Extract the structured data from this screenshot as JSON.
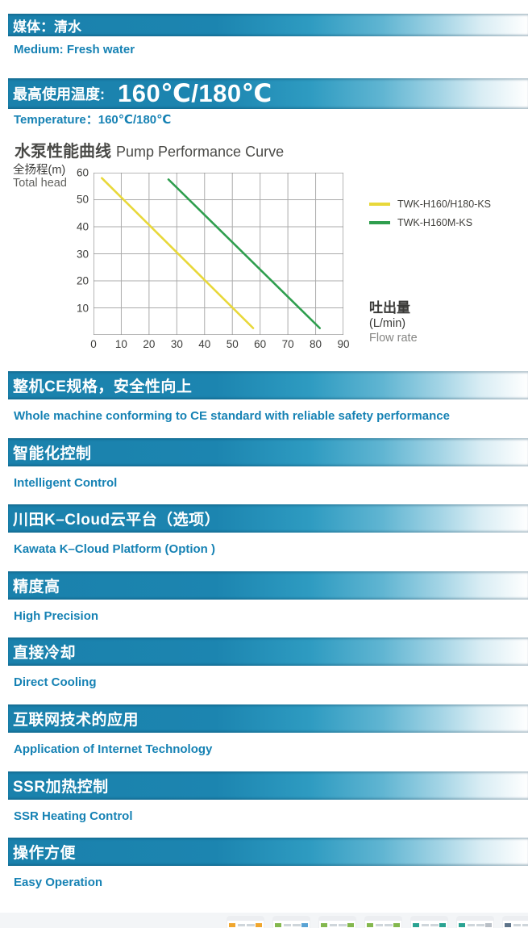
{
  "header_medium": {
    "zh": "媒体：清水",
    "en": "Medium: Fresh water"
  },
  "header_temperature": {
    "zh_label": "最高使用温度:",
    "value": "160℃/180℃",
    "en": "Temperature：160℃/180℃"
  },
  "chart_data": {
    "type": "line",
    "title_zh": "水泵性能曲线",
    "title_en": "Pump Performance Curve",
    "ylabel_zh": "全扬程(m)",
    "ylabel_en": "Total head",
    "xlabel_zh": "吐出量",
    "xlabel_unit": "(L/min)",
    "xlabel_en": "Flow rate",
    "xlim": [
      0,
      90
    ],
    "ylim": [
      0,
      60
    ],
    "xticks": [
      0,
      10,
      20,
      30,
      40,
      50,
      60,
      70,
      80,
      90
    ],
    "yticks": [
      10,
      20,
      30,
      40,
      50,
      60
    ],
    "grid": true,
    "legend_position": "right",
    "grid_color": "#ababab",
    "border_color": "#8f8f8f",
    "series": [
      {
        "name": "TWK-H160/H180-KS",
        "color": "#e8d83a",
        "points": [
          [
            3,
            58
          ],
          [
            57.5,
            2.5
          ]
        ]
      },
      {
        "name": "TWK-H160M-KS",
        "color": "#2f9e4e",
        "points": [
          [
            27,
            57.5
          ],
          [
            81.5,
            2.5
          ]
        ]
      }
    ]
  },
  "features": [
    {
      "zh": "整机CE规格，安全性向上",
      "en": "Whole machine conforming to CE standard with reliable safety performance"
    },
    {
      "zh": "智能化控制",
      "en": "Intelligent Control"
    },
    {
      "zh": "川田K–Cloud云平台（选项）",
      "en": "Kawata K–Cloud Platform (Option )"
    },
    {
      "zh": "精度高",
      "en": "High Precision"
    },
    {
      "zh": "直接冷却",
      "en": "Direct Cooling"
    },
    {
      "zh": "互联网技术的应用",
      "en": "Application of Internet Technology"
    },
    {
      "zh": "SSR加热控制",
      "en": "SSR Heating Control"
    },
    {
      "zh": "操作方便",
      "en": "Easy Operation"
    }
  ],
  "thumbnail_strip": {
    "thumbs": [
      {
        "accent_left": "#f0a62e",
        "accent_right": "#f0a62e"
      },
      {
        "accent_left": "#84b84e",
        "accent_right": "#5aa3d4"
      },
      {
        "accent_left": "#84b84e",
        "accent_right": "#84b84e"
      },
      {
        "accent_left": "#84b84e",
        "accent_right": "#84b84e"
      },
      {
        "accent_left": "#2aa392",
        "accent_right": "#2aa392"
      },
      {
        "accent_left": "#2aa392",
        "accent_right": "#b9bfc6"
      },
      {
        "accent_left": "#5d7389",
        "accent_right": "#98a3ad"
      }
    ]
  }
}
